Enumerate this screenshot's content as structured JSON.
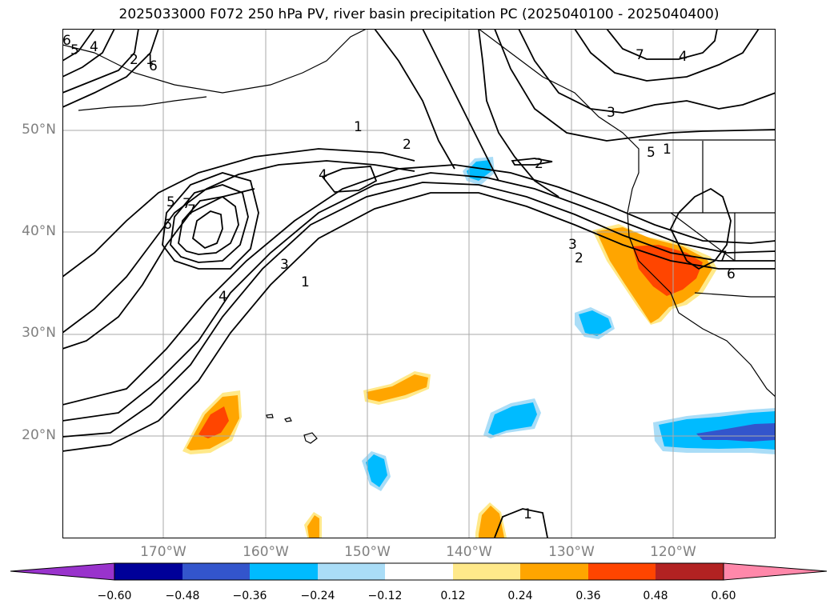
{
  "title": "2025033000 F072 250 hPa PV, river basin precipitation PC (2025040100 - 2025040400)",
  "lat_labels": [
    "50°N",
    "40°N",
    "30°N",
    "20°N"
  ],
  "lon_labels": [
    "170°W",
    "160°W",
    "150°W",
    "140°W",
    "130°W",
    "120°W"
  ],
  "contour_labels": [
    "1",
    "2",
    "3",
    "4",
    "5",
    "6",
    "7",
    "2",
    "1",
    "4",
    "5",
    "6",
    "7",
    "3",
    "1",
    "4",
    "2",
    "2",
    "3",
    "4",
    "7",
    "6",
    "1",
    "5",
    "7",
    "6",
    "1"
  ],
  "colorbar": {
    "ticks": [
      "−0.60",
      "−0.48",
      "−0.36",
      "−0.24",
      "−0.12",
      "0.12",
      "0.24",
      "0.36",
      "0.48",
      "0.60"
    ],
    "colors": [
      "#9933cc",
      "#000099",
      "#3355cc",
      "#00bbff",
      "#aaddf7",
      "#ffffff",
      "#ffe98a",
      "#ffa500",
      "#ff4500",
      "#b22222",
      "#ff88aa"
    ]
  },
  "colors": {
    "grid": "#aaaaaa",
    "contour": "#000000",
    "coast": "#000000"
  }
}
